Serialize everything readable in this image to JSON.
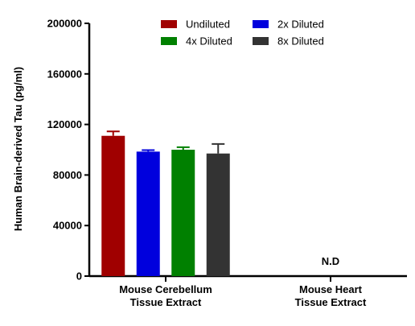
{
  "chart_data": {
    "type": "bar",
    "ylabel": "Human Brain-derived Tau (pg/ml)",
    "ylim": [
      0,
      200000
    ],
    "yticks": [
      "0",
      "40000",
      "80000",
      "120000",
      "160000",
      "200000"
    ],
    "ytick_values": [
      0,
      40000,
      80000,
      120000,
      160000,
      200000
    ],
    "categories": [
      [
        "Mouse Cerebellum",
        "Tissue Extract"
      ],
      [
        "Mouse Heart",
        "Tissue Extract"
      ]
    ],
    "series": [
      {
        "name": "Undiluted",
        "color": "#a00000",
        "values": [
          111000,
          null
        ],
        "errors": [
          3500,
          null
        ]
      },
      {
        "name": "2x Diluted",
        "color": "#0000dd",
        "values": [
          98500,
          null
        ],
        "errors": [
          1200,
          null
        ]
      },
      {
        "name": "4x Diluted",
        "color": "#008000",
        "values": [
          100000,
          null
        ],
        "errors": [
          2000,
          null
        ]
      },
      {
        "name": "8x Diluted",
        "color": "#333333",
        "values": [
          97000,
          null
        ],
        "errors": [
          7500,
          null
        ]
      }
    ],
    "legend": "top-center",
    "grid": false,
    "annotations": [
      {
        "category_index": 1,
        "text": "N.D"
      }
    ]
  }
}
